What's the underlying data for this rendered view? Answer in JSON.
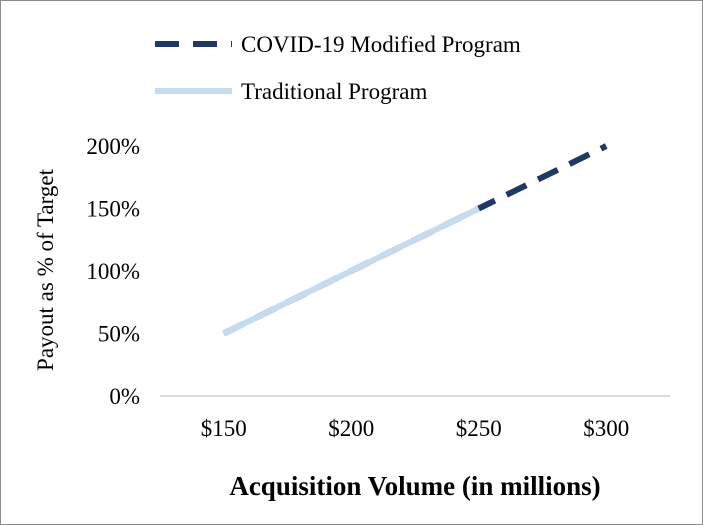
{
  "chart_data": {
    "type": "line",
    "title": "",
    "xlabel": "Acquisition Volume (in millions)",
    "ylabel": "Payout as % of Target",
    "x_ticks": [
      150,
      200,
      250,
      300
    ],
    "x_tick_labels": [
      "$150",
      "$200",
      "$250",
      "$300"
    ],
    "y_ticks": [
      0,
      50,
      100,
      150,
      200
    ],
    "y_tick_labels": [
      "0%",
      "50%",
      "100%",
      "150%",
      "200%"
    ],
    "xlim": [
      125,
      325
    ],
    "ylim": [
      0,
      200
    ],
    "grid": false,
    "legend_position": "top",
    "series": [
      {
        "name": "COVID-19 Modified Program",
        "color": "#1f3864",
        "style": "dashed",
        "x": [
          150,
          200,
          250,
          300
        ],
        "y": [
          50,
          100,
          150,
          200
        ]
      },
      {
        "name": "Traditional Program",
        "color": "#c5dcf0",
        "style": "solid",
        "x": [
          150,
          200,
          250
        ],
        "y": [
          50,
          100,
          150
        ]
      }
    ]
  }
}
